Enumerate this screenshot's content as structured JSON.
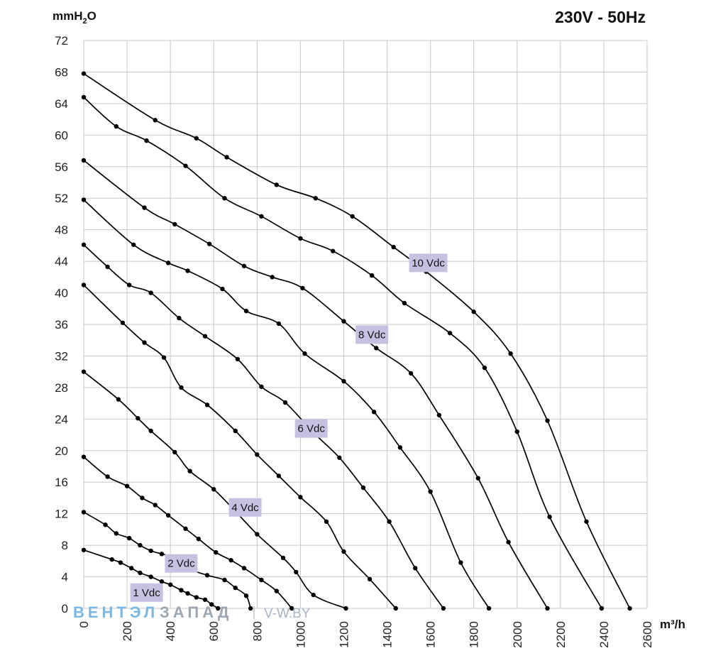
{
  "header": {
    "title": "230V - 50Hz"
  },
  "watermark": {
    "part1": "ВЕНТЭЛ",
    "part2": "ЗАПАД",
    "url": "V-W.BY"
  },
  "colors": {
    "label_bg": "#c8c0e0",
    "grid": "#c8c8c8",
    "curve": "#000000",
    "watermark_blue": "#79b9e3",
    "watermark_grey": "#9da6b3"
  },
  "chart_data": {
    "type": "line",
    "title": "230V - 50Hz",
    "xlabel": "m³/h",
    "ylabel": "mmH₂O",
    "ylabel_parts": {
      "main": "mmH",
      "sub": "2",
      "tail": "O"
    },
    "xlim": [
      0,
      2600
    ],
    "ylim": [
      0,
      72
    ],
    "x_ticks": [
      "0",
      "200",
      "400",
      "600",
      "800",
      "1000",
      "1200",
      "1400",
      "1600",
      "1800",
      "2000",
      "2200",
      "2400",
      "2600"
    ],
    "y_ticks": [
      "0",
      "4",
      "8",
      "12",
      "16",
      "20",
      "24",
      "28",
      "32",
      "36",
      "40",
      "44",
      "48",
      "52",
      "56",
      "60",
      "64",
      "68",
      "72"
    ],
    "grid": true,
    "series": [
      {
        "name": "1 Vdc",
        "label_at": [
          290,
          2
        ],
        "points": [
          [
            0,
            7.4
          ],
          [
            130,
            6.2
          ],
          [
            170,
            5.8
          ],
          [
            220,
            5.1
          ],
          [
            260,
            4.5
          ],
          [
            310,
            4.0
          ],
          [
            360,
            3.4
          ],
          [
            400,
            3.0
          ],
          [
            450,
            2.3
          ],
          [
            480,
            1.9
          ],
          [
            520,
            1.4
          ],
          [
            560,
            1.1
          ],
          [
            590,
            0.5
          ],
          [
            620,
            0
          ]
        ]
      },
      {
        "name": "2 Vdc",
        "label_at": [
          450,
          5.7
        ],
        "points": [
          [
            0,
            12.2
          ],
          [
            100,
            10.6
          ],
          [
            150,
            9.5
          ],
          [
            210,
            8.9
          ],
          [
            260,
            8.0
          ],
          [
            310,
            7.3
          ],
          [
            360,
            6.9
          ],
          [
            410,
            6.5
          ],
          [
            490,
            5.0
          ],
          [
            570,
            4.2
          ],
          [
            650,
            3.6
          ],
          [
            700,
            2.6
          ],
          [
            750,
            1.6
          ],
          [
            770,
            0
          ]
        ]
      },
      {
        "name": "4 Vdc",
        "label_at": [
          745,
          12.8
        ],
        "points": [
          [
            0,
            19.2
          ],
          [
            110,
            16.7
          ],
          [
            200,
            15.5
          ],
          [
            270,
            14.0
          ],
          [
            330,
            13.1
          ],
          [
            390,
            11.8
          ],
          [
            470,
            10.1
          ],
          [
            530,
            8.8
          ],
          [
            610,
            7.1
          ],
          [
            680,
            6.1
          ],
          [
            740,
            5.1
          ],
          [
            820,
            3.6
          ],
          [
            890,
            2.2
          ],
          [
            960,
            0
          ]
        ]
      },
      {
        "name": "6 Vdc",
        "label_at": [
          1050,
          22.8
        ],
        "points": [
          [
            0,
            30
          ],
          [
            160,
            26.5
          ],
          [
            250,
            24.1
          ],
          [
            310,
            22.5
          ],
          [
            420,
            19.8
          ],
          [
            490,
            17.4
          ],
          [
            600,
            15.1
          ],
          [
            700,
            12.3
          ],
          [
            800,
            9.4
          ],
          [
            920,
            6.4
          ],
          [
            980,
            4.6
          ],
          [
            1060,
            1.7
          ],
          [
            1210,
            0
          ]
        ]
      },
      {
        "name": "8 Vdc",
        "label_at": [
          1330,
          34.7
        ],
        "points": [
          [
            0,
            41
          ],
          [
            180,
            36.2
          ],
          [
            280,
            33.7
          ],
          [
            370,
            31.8
          ],
          [
            450,
            28.0
          ],
          [
            570,
            25.8
          ],
          [
            700,
            22.5
          ],
          [
            800,
            19.5
          ],
          [
            900,
            16.8
          ],
          [
            1000,
            14.1
          ],
          [
            1120,
            11.0
          ],
          [
            1200,
            7.2
          ],
          [
            1320,
            3.7
          ],
          [
            1440,
            0
          ]
        ]
      },
      {
        "name": "10 Vdc",
        "label_at": [
          1590,
          43.8
        ],
        "points": [
          [
            0,
            46.1
          ],
          [
            110,
            43.3
          ],
          [
            210,
            41.0
          ],
          [
            310,
            40.0
          ],
          [
            440,
            36.8
          ],
          [
            560,
            34.5
          ],
          [
            710,
            31.6
          ],
          [
            820,
            28.1
          ],
          [
            930,
            26.1
          ],
          [
            1060,
            22.3
          ],
          [
            1180,
            19.1
          ],
          [
            1290,
            15.3
          ],
          [
            1410,
            11.0
          ],
          [
            1530,
            5.1
          ],
          [
            1660,
            0
          ]
        ]
      },
      {
        "name": "",
        "points": [
          [
            0,
            51.8
          ],
          [
            230,
            46.1
          ],
          [
            390,
            43.8
          ],
          [
            480,
            42.8
          ],
          [
            640,
            40.5
          ],
          [
            750,
            37.7
          ],
          [
            900,
            36.1
          ],
          [
            1020,
            32.3
          ],
          [
            1200,
            28.8
          ],
          [
            1340,
            24.9
          ],
          [
            1460,
            20.4
          ],
          [
            1600,
            14.8
          ],
          [
            1740,
            5.8
          ],
          [
            1870,
            0
          ]
        ]
      },
      {
        "name": "",
        "points": [
          [
            0,
            56.8
          ],
          [
            280,
            50.8
          ],
          [
            420,
            48.7
          ],
          [
            580,
            46.2
          ],
          [
            740,
            43.4
          ],
          [
            870,
            42.0
          ],
          [
            1010,
            40.6
          ],
          [
            1200,
            36.4
          ],
          [
            1350,
            33.0
          ],
          [
            1510,
            29.8
          ],
          [
            1640,
            24.5
          ],
          [
            1820,
            16.5
          ],
          [
            1960,
            8.4
          ],
          [
            2140,
            0
          ]
        ]
      },
      {
        "name": "",
        "points": [
          [
            0,
            64.8
          ],
          [
            150,
            61.1
          ],
          [
            290,
            59.3
          ],
          [
            470,
            56.1
          ],
          [
            650,
            52.0
          ],
          [
            820,
            49.7
          ],
          [
            1000,
            46.9
          ],
          [
            1150,
            45.3
          ],
          [
            1330,
            42.2
          ],
          [
            1480,
            38.7
          ],
          [
            1690,
            34.9
          ],
          [
            1850,
            30.5
          ],
          [
            2000,
            22.4
          ],
          [
            2150,
            11.6
          ],
          [
            2390,
            0
          ]
        ]
      },
      {
        "name": "",
        "points": [
          [
            0,
            67.8
          ],
          [
            330,
            61.9
          ],
          [
            520,
            59.6
          ],
          [
            660,
            57.2
          ],
          [
            890,
            53.7
          ],
          [
            1070,
            52.0
          ],
          [
            1240,
            49.7
          ],
          [
            1430,
            45.8
          ],
          [
            1580,
            42.7
          ],
          [
            1800,
            37.6
          ],
          [
            1970,
            32.3
          ],
          [
            2140,
            23.8
          ],
          [
            2320,
            11.0
          ],
          [
            2520,
            0
          ]
        ]
      }
    ]
  }
}
